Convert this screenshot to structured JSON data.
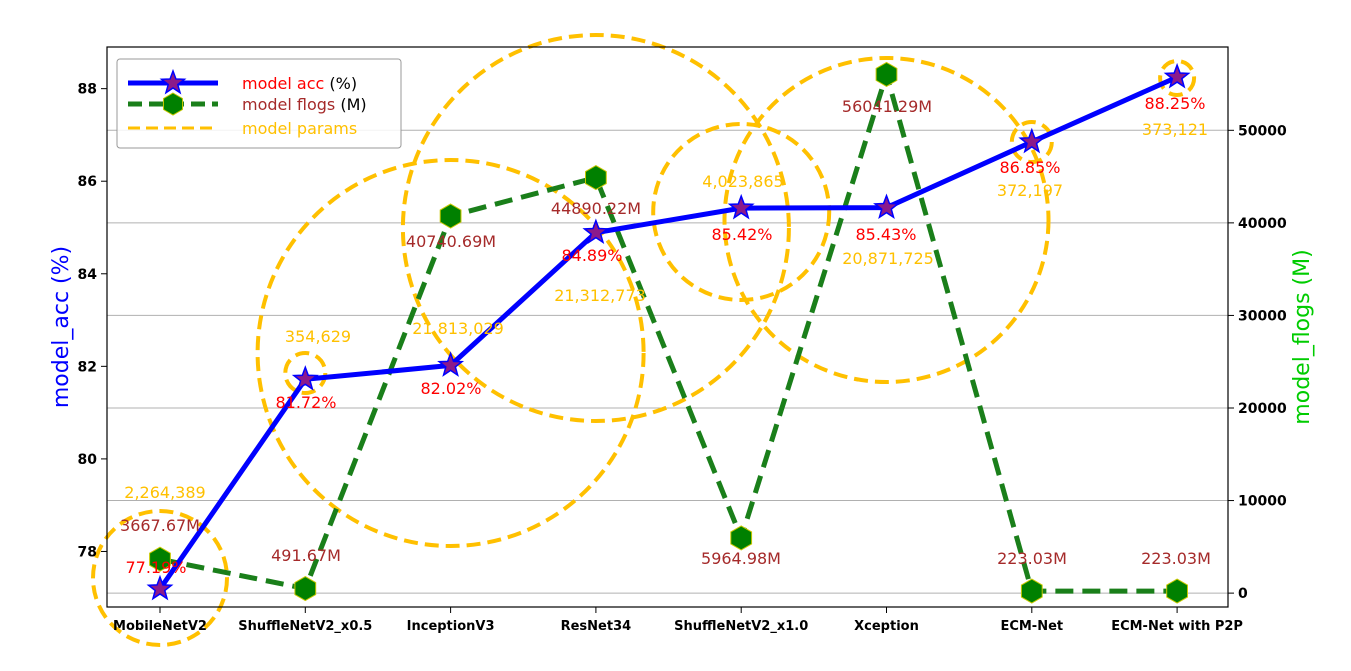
{
  "chart_data": {
    "type": "line",
    "categories": [
      "MobileNetV2",
      "ShuffleNetV2_x0.5",
      "InceptionV3",
      "ResNet34",
      "ShuffleNetV2_x1.0",
      "Xception",
      "ECM-Net",
      "ECM-Net with P2P"
    ],
    "series": [
      {
        "name": "model acc (%)",
        "axis": "left",
        "values": [
          77.19,
          81.72,
          82.02,
          84.89,
          85.42,
          85.43,
          86.85,
          88.25
        ],
        "labels": [
          "77.19%",
          "81.72%",
          "82.02%",
          "84.89%",
          "85.42%",
          "85.43%",
          "86.85%",
          "88.25%"
        ],
        "color": "#0000ff",
        "marker": "star",
        "marker_color": "#8b1a8b",
        "label_color": "#ff0000"
      },
      {
        "name": "model flogs (M)",
        "axis": "right",
        "values": [
          3667.67,
          491.67,
          40740.69,
          44890.22,
          5964.98,
          56041.29,
          223.03,
          223.03
        ],
        "labels": [
          "3667.67M",
          "491.67M",
          "40740.69M",
          "44890.22M",
          "5964.98M",
          "56041.29M",
          "223.03M",
          "223.03M"
        ],
        "color": "#1a7f1a",
        "marker": "hexagon",
        "marker_color": "#008000",
        "label_color": "#a52a2a"
      },
      {
        "name": "model params",
        "values": [
          2264389,
          354629,
          21813029,
          21312773,
          4023865,
          20871725,
          372197,
          373121
        ],
        "labels": [
          "2,264,389",
          "354,629",
          "21,813,029",
          "21,312,773",
          "4,023,865",
          "20,871,725",
          "372,197",
          "373,121"
        ],
        "color": "#ffc000",
        "marker": "dashed-circle"
      }
    ],
    "legend": {
      "placement": "top-left",
      "entries": [
        {
          "prefix": "model acc ",
          "suffix": "(%)",
          "color": "#ff0000"
        },
        {
          "prefix": "model flogs ",
          "suffix": "(M)",
          "color": "#a52a2a"
        },
        {
          "prefix": "model params",
          "suffix": "",
          "color": "#ffc000"
        }
      ]
    },
    "ylabel_left": "model_acc (%)",
    "ylabel_right": "model_flogs (M)",
    "ylabel_left_color": "#0000ff",
    "ylabel_right_color": "#00cc00",
    "ylim_left": [
      76.8,
      88.9
    ],
    "yticks_left": [
      78,
      80,
      82,
      84,
      86,
      88
    ],
    "ylim_right": [
      -1500,
      59000
    ],
    "yticks_right": [
      0,
      10000,
      20000,
      30000,
      40000,
      50000
    ],
    "grid": "horizontal, right-axis ticks"
  }
}
